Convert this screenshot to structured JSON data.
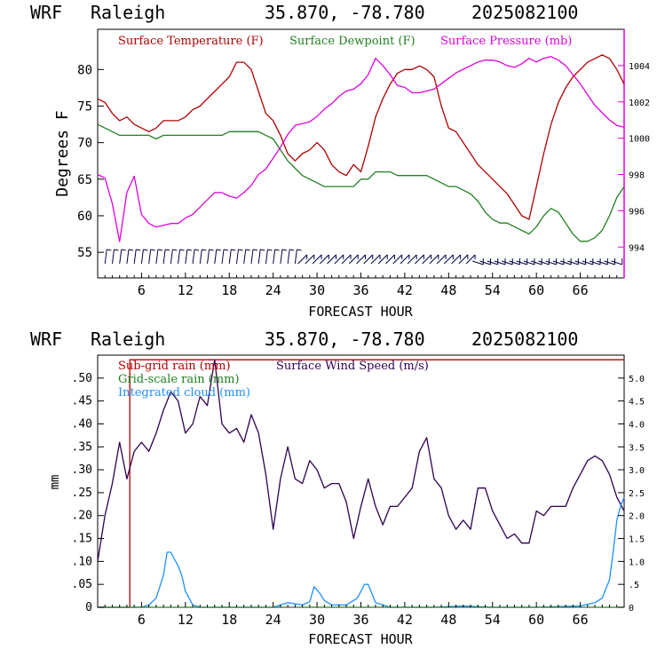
{
  "charts": [
    {
      "header": {
        "model": "WRF",
        "site": "Raleigh",
        "coords": "35.870, -78.780",
        "run": "2025082100"
      },
      "xlabel": "FORECAST HOUR",
      "ylabel_left": "Degrees F",
      "legend": {
        "temp": "Surface Temperature (F)",
        "dew": "Surface Dewpoint (F)",
        "pres": "Surface Pressure (mb)"
      },
      "xticks": [
        "6",
        "12",
        "18",
        "24",
        "30",
        "36",
        "42",
        "48",
        "54",
        "60",
        "66"
      ],
      "yticks_left": [
        "55",
        "60",
        "65",
        "70",
        "75",
        "80"
      ],
      "yticks_right": [
        "994",
        "996",
        "998",
        "1000",
        "1002",
        "1004"
      ]
    },
    {
      "header": {
        "model": "WRF",
        "site": "Raleigh",
        "coords": "35.870, -78.780",
        "run": "2025082100"
      },
      "xlabel": "FORECAST HOUR",
      "ylabel_left": "mm",
      "legend": {
        "subgrid": "Sub-grid rain (mm)",
        "gridscale": "Grid-scale rain (mm)",
        "cloud": "Integrated cloud (mm)",
        "wind": "Surface Wind Speed (m/s)"
      },
      "xticks": [
        "6",
        "12",
        "18",
        "24",
        "30",
        "36",
        "42",
        "48",
        "54",
        "60",
        "66"
      ],
      "yticks_left": [
        "0",
        ".05",
        ".10",
        ".15",
        ".20",
        ".25",
        ".30",
        ".35",
        ".40",
        ".45",
        ".50"
      ],
      "yticks_right": [
        "0",
        ".5",
        "1.0",
        "1.5",
        "2.0",
        "2.5",
        "3.0",
        "3.5",
        "4.0",
        "4.5",
        "5.0"
      ]
    }
  ],
  "chart_data": [
    {
      "type": "line",
      "x_range": [
        0,
        72
      ],
      "ylim_left": [
        51.5,
        85.5
      ],
      "ylim_right": [
        992.3,
        1006.0
      ],
      "colors": {
        "temp": "#b00000",
        "dew": "#208020",
        "pres": "#e000e0",
        "barbs": "#000040"
      },
      "series": [
        {
          "name": "Surface Temperature (F)",
          "axis": "left",
          "x": [
            0,
            1,
            2,
            3,
            4,
            5,
            6,
            7,
            8,
            9,
            10,
            11,
            12,
            13,
            14,
            15,
            16,
            17,
            18,
            19,
            20,
            21,
            22,
            23,
            24,
            25,
            26,
            27,
            28,
            29,
            30,
            31,
            32,
            33,
            34,
            35,
            36,
            37,
            38,
            39,
            40,
            41,
            42,
            43,
            44,
            45,
            46,
            47,
            48,
            49,
            50,
            51,
            52,
            53,
            54,
            55,
            56,
            57,
            58,
            59,
            60,
            61,
            62,
            63,
            64,
            65,
            66,
            67,
            68,
            69,
            70,
            71,
            72
          ],
          "values": [
            76,
            75.5,
            74,
            73,
            73.5,
            72.5,
            72,
            71.5,
            72,
            73,
            73,
            73,
            73.5,
            74.5,
            75,
            76,
            77,
            78,
            79,
            81,
            81,
            80,
            77,
            74,
            73,
            71,
            68.5,
            67.5,
            68.5,
            69,
            70,
            69,
            67,
            66,
            65.5,
            67,
            66,
            69.5,
            73.5,
            76,
            78,
            79.5,
            80,
            80,
            80.5,
            80,
            79,
            75,
            72,
            71.5,
            70,
            68.5,
            67,
            66,
            65,
            64,
            63,
            61.5,
            60,
            59.5,
            64,
            68.5,
            72.5,
            75.5,
            77.5,
            79,
            80,
            81,
            81.5,
            82,
            81.5,
            80,
            78
          ]
        },
        {
          "name": "Surface Dewpoint (F)",
          "axis": "left",
          "x": [
            0,
            1,
            2,
            3,
            4,
            5,
            6,
            7,
            8,
            9,
            10,
            11,
            12,
            13,
            14,
            15,
            16,
            17,
            18,
            19,
            20,
            21,
            22,
            23,
            24,
            25,
            26,
            27,
            28,
            29,
            30,
            31,
            32,
            33,
            34,
            35,
            36,
            37,
            38,
            39,
            40,
            41,
            42,
            43,
            44,
            45,
            46,
            47,
            48,
            49,
            50,
            51,
            52,
            53,
            54,
            55,
            56,
            57,
            58,
            59,
            60,
            61,
            62,
            63,
            64,
            65,
            66,
            67,
            68,
            69,
            70,
            71,
            72
          ],
          "values": [
            72.5,
            72,
            71.5,
            71,
            71,
            71,
            71,
            71,
            70.5,
            71,
            71,
            71,
            71,
            71,
            71,
            71,
            71,
            71,
            71.5,
            71.5,
            71.5,
            71.5,
            71.5,
            71,
            70.5,
            69,
            67.5,
            66.5,
            65.5,
            65,
            64.5,
            64,
            64,
            64,
            64,
            64,
            65,
            65,
            66,
            66,
            66,
            65.5,
            65.5,
            65.5,
            65.5,
            65.5,
            65,
            64.5,
            64,
            64,
            63.5,
            63,
            62,
            60.5,
            59.5,
            59,
            59,
            58.5,
            58,
            57.5,
            58.5,
            60,
            61,
            60.5,
            59,
            57.5,
            56.5,
            56.5,
            57,
            58,
            60,
            62.5,
            64
          ]
        },
        {
          "name": "Surface Pressure (mb)",
          "axis": "right",
          "x": [
            0,
            1,
            2,
            3,
            4,
            5,
            6,
            7,
            8,
            9,
            10,
            11,
            12,
            13,
            14,
            15,
            16,
            17,
            18,
            19,
            20,
            21,
            22,
            23,
            24,
            25,
            26,
            27,
            28,
            29,
            30,
            31,
            32,
            33,
            34,
            35,
            36,
            37,
            38,
            39,
            40,
            41,
            42,
            43,
            44,
            45,
            46,
            47,
            48,
            49,
            50,
            51,
            52,
            53,
            54,
            55,
            56,
            57,
            58,
            59,
            60,
            61,
            62,
            63,
            64,
            65,
            66,
            67,
            68,
            69,
            70,
            71,
            72
          ],
          "values": [
            998,
            997.8,
            996.4,
            994.3,
            997,
            997.9,
            995.8,
            995.3,
            995.1,
            995.2,
            995.3,
            995.3,
            995.6,
            995.8,
            996.2,
            996.6,
            997,
            997,
            996.8,
            996.7,
            997,
            997.4,
            998,
            998.3,
            998.9,
            999.5,
            1000.2,
            1000.7,
            1000.8,
            1000.9,
            1001.2,
            1001.6,
            1001.9,
            1002.3,
            1002.6,
            1002.7,
            1003,
            1003.5,
            1004.4,
            1004,
            1003.5,
            1002.9,
            1002.8,
            1002.5,
            1002.5,
            1002.6,
            1002.7,
            1003,
            1003.3,
            1003.6,
            1003.8,
            1004,
            1004.2,
            1004.3,
            1004.3,
            1004.2,
            1004,
            1003.9,
            1004.1,
            1004.4,
            1004.2,
            1004.4,
            1004.5,
            1004.3,
            1004,
            1003.5,
            1003,
            1002.4,
            1001.8,
            1001.4,
            1001,
            1000.7,
            1000.6
          ]
        }
      ]
    },
    {
      "type": "line",
      "x_range": [
        0,
        72
      ],
      "ylim_left": [
        0,
        0.55
      ],
      "ylim_right": [
        0,
        5.5
      ],
      "colors": {
        "subgrid": "#b00000",
        "gridscale": "#208020",
        "cloud": "#1e90ff",
        "wind": "#300050"
      },
      "subgrid_steps": {
        "x": [
          0,
          4.4,
          4.4,
          72
        ],
        "values": [
          0,
          0,
          0.54,
          0.54
        ]
      },
      "series": [
        {
          "name": "Surface Wind Speed (m/s)",
          "axis": "right",
          "x": [
            0,
            1,
            2,
            3,
            4,
            5,
            6,
            7,
            8,
            9,
            10,
            11,
            12,
            13,
            14,
            15,
            16,
            17,
            18,
            19,
            20,
            21,
            22,
            23,
            24,
            25,
            26,
            27,
            28,
            29,
            30,
            31,
            32,
            33,
            34,
            35,
            36,
            37,
            38,
            39,
            40,
            41,
            42,
            43,
            44,
            45,
            46,
            47,
            48,
            49,
            50,
            51,
            52,
            53,
            54,
            55,
            56,
            57,
            58,
            59,
            60,
            61,
            62,
            63,
            64,
            65,
            66,
            67,
            68,
            69,
            70,
            71,
            72
          ],
          "values": [
            1.0,
            2.0,
            2.7,
            3.6,
            2.8,
            3.4,
            3.6,
            3.4,
            3.8,
            4.3,
            4.7,
            4.5,
            3.8,
            4.0,
            4.6,
            4.4,
            5.4,
            4.0,
            3.8,
            3.9,
            3.6,
            4.2,
            3.8,
            2.9,
            1.7,
            2.8,
            3.5,
            2.8,
            2.7,
            3.2,
            3.0,
            2.6,
            2.7,
            2.7,
            2.3,
            1.5,
            2.2,
            2.8,
            2.2,
            1.8,
            2.2,
            2.2,
            2.4,
            2.6,
            3.4,
            3.7,
            2.8,
            2.6,
            2.0,
            1.7,
            1.9,
            1.7,
            2.6,
            2.6,
            2.1,
            1.8,
            1.5,
            1.6,
            1.4,
            1.4,
            2.1,
            2.0,
            2.2,
            2.2,
            2.2,
            2.6,
            2.9,
            3.2,
            3.3,
            3.2,
            2.9,
            2.4,
            2.1
          ]
        },
        {
          "name": "Integrated cloud (mm)",
          "axis": "left",
          "x": [
            0,
            2,
            4,
            6,
            7,
            8,
            9,
            9.5,
            10,
            10.5,
            11,
            11.5,
            12,
            13,
            14,
            18,
            24,
            26,
            28,
            29,
            29.6,
            30.4,
            31,
            32,
            34,
            35.5,
            36.5,
            37,
            38,
            40,
            46,
            50,
            54,
            60,
            66,
            68,
            69,
            70,
            70.5,
            71,
            71.5,
            72
          ],
          "values": [
            0,
            0,
            0,
            0,
            0.005,
            0.02,
            0.07,
            0.12,
            0.12,
            0.105,
            0.09,
            0.07,
            0.035,
            0.005,
            0,
            0,
            0,
            0.01,
            0.005,
            0.012,
            0.045,
            0.03,
            0.015,
            0.005,
            0.005,
            0.02,
            0.05,
            0.05,
            0.01,
            0,
            0,
            0.003,
            0,
            0,
            0.003,
            0.01,
            0.02,
            0.06,
            0.12,
            0.19,
            0.22,
            0.24
          ]
        },
        {
          "name": "Grid-scale rain (mm)",
          "axis": "left",
          "x": [
            0,
            72
          ],
          "values": [
            0,
            0
          ]
        }
      ]
    }
  ]
}
